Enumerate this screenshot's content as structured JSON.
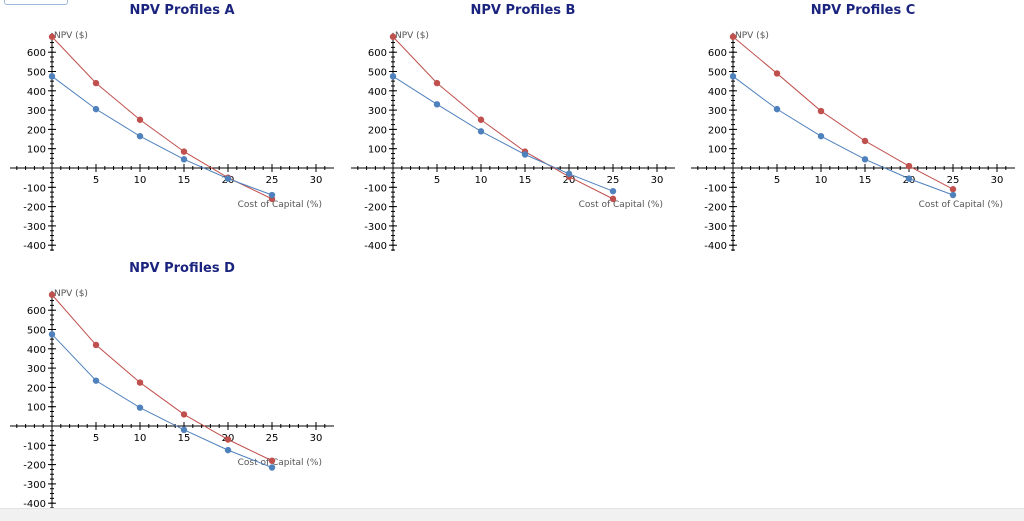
{
  "chart_data": [
    {
      "type": "line",
      "title": "NPV Profiles A",
      "xlabel": "Cost of Capital (%)",
      "ylabel": "NPV ($)",
      "xlim": [
        0,
        31
      ],
      "ylim": [
        -420,
        690
      ],
      "xticks": [
        5,
        10,
        15,
        20,
        25,
        30
      ],
      "yticks": [
        600,
        500,
        400,
        300,
        200,
        100,
        -100,
        -200,
        -300,
        -400
      ],
      "series": [
        {
          "name": "red",
          "color": "#c0504d",
          "x": [
            0,
            5,
            10,
            15,
            20,
            25
          ],
          "y": [
            680,
            440,
            250,
            85,
            -50,
            -160
          ]
        },
        {
          "name": "blue",
          "color": "#4f81bd",
          "x": [
            0,
            5,
            10,
            15,
            20,
            25
          ],
          "y": [
            475,
            305,
            165,
            45,
            -55,
            -140
          ]
        }
      ]
    },
    {
      "type": "line",
      "title": "NPV Profiles B",
      "xlabel": "Cost of Capital (%)",
      "ylabel": "NPV ($)",
      "xlim": [
        0,
        31
      ],
      "ylim": [
        -420,
        690
      ],
      "xticks": [
        5,
        10,
        15,
        20,
        25,
        30
      ],
      "yticks": [
        600,
        500,
        400,
        300,
        200,
        100,
        -100,
        -200,
        -300,
        -400
      ],
      "series": [
        {
          "name": "red",
          "color": "#c0504d",
          "x": [
            0,
            5,
            10,
            15,
            20,
            25
          ],
          "y": [
            680,
            440,
            250,
            85,
            -45,
            -160
          ]
        },
        {
          "name": "blue",
          "color": "#4f81bd",
          "x": [
            0,
            5,
            10,
            15,
            20,
            25
          ],
          "y": [
            475,
            330,
            190,
            70,
            -30,
            -120
          ]
        }
      ]
    },
    {
      "type": "line",
      "title": "NPV Profiles C",
      "xlabel": "Cost of Capital (%)",
      "ylabel": "NPV ($)",
      "xlim": [
        0,
        31
      ],
      "ylim": [
        -420,
        690
      ],
      "xticks": [
        5,
        10,
        15,
        20,
        25,
        30
      ],
      "yticks": [
        600,
        500,
        400,
        300,
        200,
        100,
        -100,
        -200,
        -300,
        -400
      ],
      "series": [
        {
          "name": "red",
          "color": "#c0504d",
          "x": [
            0,
            5,
            10,
            15,
            20,
            25
          ],
          "y": [
            680,
            490,
            295,
            140,
            10,
            -110
          ]
        },
        {
          "name": "blue",
          "color": "#4f81bd",
          "x": [
            0,
            5,
            10,
            15,
            20,
            25
          ],
          "y": [
            475,
            305,
            165,
            45,
            -55,
            -140
          ]
        }
      ]
    },
    {
      "type": "line",
      "title": "NPV Profiles D",
      "xlabel": "Cost of Capital (%)",
      "ylabel": "NPV ($)",
      "xlim": [
        0,
        31
      ],
      "ylim": [
        -420,
        690
      ],
      "xticks": [
        5,
        10,
        15,
        20,
        25,
        30
      ],
      "yticks": [
        600,
        500,
        400,
        300,
        200,
        100,
        -100,
        -200,
        -300,
        -400
      ],
      "series": [
        {
          "name": "red",
          "color": "#c0504d",
          "x": [
            0,
            5,
            10,
            15,
            20,
            25
          ],
          "y": [
            680,
            420,
            225,
            60,
            -70,
            -180
          ]
        },
        {
          "name": "blue",
          "color": "#4f81bd",
          "x": [
            0,
            5,
            10,
            15,
            20,
            25
          ],
          "y": [
            475,
            235,
            95,
            -20,
            -125,
            -215
          ]
        }
      ]
    }
  ]
}
